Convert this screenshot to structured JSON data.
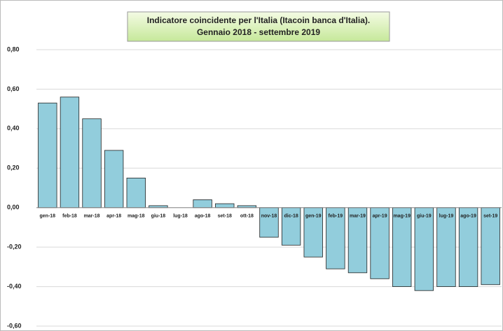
{
  "chart_data": {
    "type": "bar",
    "title": "Indicatore coincidente per l'Italia (Itacoin banca d'Italia).",
    "subtitle": "Gennaio 2018 - settembre 2019",
    "categories": [
      "gen-18",
      "feb-18",
      "mar-18",
      "apr-18",
      "mag-18",
      "giu-18",
      "lug-18",
      "ago-18",
      "set-18",
      "ott-18",
      "nov-18",
      "dic-18",
      "gen-19",
      "feb-19",
      "mar-19",
      "apr-19",
      "mag-19",
      "giu-19",
      "lug-19",
      "ago-19",
      "set-19"
    ],
    "values": [
      0.53,
      0.56,
      0.45,
      0.29,
      0.15,
      0.01,
      0.0,
      0.04,
      0.02,
      0.01,
      -0.15,
      -0.19,
      -0.25,
      -0.31,
      -0.33,
      -0.36,
      -0.4,
      -0.42,
      -0.4,
      -0.4,
      -0.39
    ],
    "color": "#92cddc",
    "ylim": [
      -0.6,
      0.8
    ],
    "yticks": [
      {
        "value": -0.6,
        "label": "-0,60"
      },
      {
        "value": -0.4,
        "label": "-0,40"
      },
      {
        "value": -0.2,
        "label": "-0,20"
      },
      {
        "value": 0,
        "label": "0,00"
      },
      {
        "value": 0.2,
        "label": "0,20"
      },
      {
        "value": 0.4,
        "label": "0,40"
      },
      {
        "value": 0.6,
        "label": "0,60"
      },
      {
        "value": 0.8,
        "label": "0,80"
      }
    ],
    "grid": true
  }
}
